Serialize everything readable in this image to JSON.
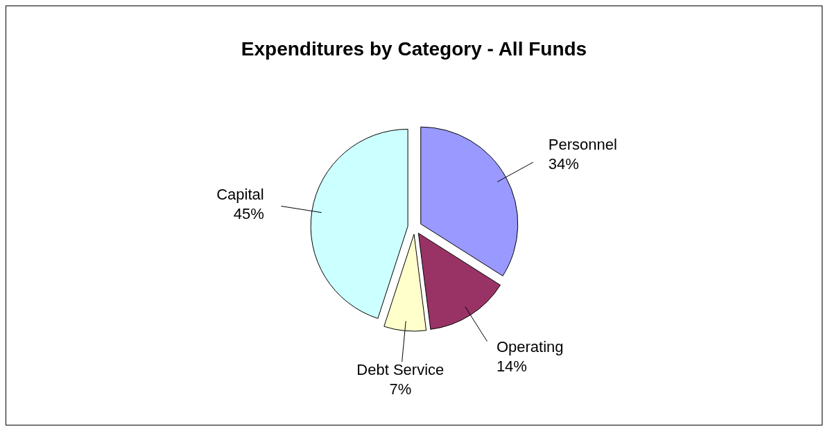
{
  "chart_data": {
    "type": "pie",
    "title": "Expenditures by Category - All Funds",
    "categories": [
      "Personnel",
      "Operating",
      "Debt Service",
      "Capital"
    ],
    "values": [
      34,
      14,
      7,
      45
    ],
    "colors": [
      "#9999ff",
      "#993366",
      "#ffffcc",
      "#ccffff"
    ],
    "value_labels": [
      "34%",
      "14%",
      "7%",
      "45%"
    ]
  }
}
